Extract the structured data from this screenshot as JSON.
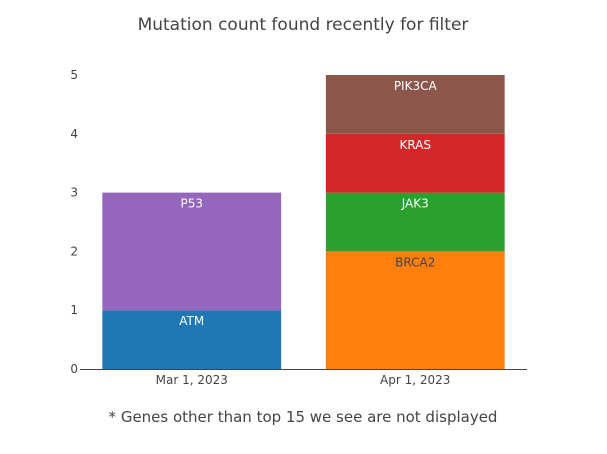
{
  "chart_data": {
    "type": "bar",
    "stacked": true,
    "title": "Mutation count found recently for filter",
    "xlabel": "",
    "ylabel": "",
    "ylim": [
      0,
      5
    ],
    "yticks": [
      0,
      1,
      2,
      3,
      4,
      5
    ],
    "grid": false,
    "legend": "none",
    "categories": [
      "Mar 1, 2023",
      "Apr 1, 2023"
    ],
    "series": [
      {
        "name": "ATM",
        "color": "#1f77b4",
        "label_color": "#ffffff",
        "values": [
          1,
          0
        ]
      },
      {
        "name": "P53",
        "color": "#9467bd",
        "label_color": "#ffffff",
        "values": [
          2,
          0
        ]
      },
      {
        "name": "BRCA2",
        "color": "#ff7f0e",
        "label_color": "#444444",
        "values": [
          0,
          2
        ]
      },
      {
        "name": "JAK3",
        "color": "#2ca02c",
        "label_color": "#ffffff",
        "values": [
          0,
          1
        ]
      },
      {
        "name": "KRAS",
        "color": "#d62728",
        "label_color": "#ffffff",
        "values": [
          0,
          1
        ]
      },
      {
        "name": "PIK3CA",
        "color": "#8c564b",
        "label_color": "#ffffff",
        "values": [
          0,
          1
        ]
      }
    ],
    "footnote": "* Genes other than top 15 we see are not displayed"
  }
}
